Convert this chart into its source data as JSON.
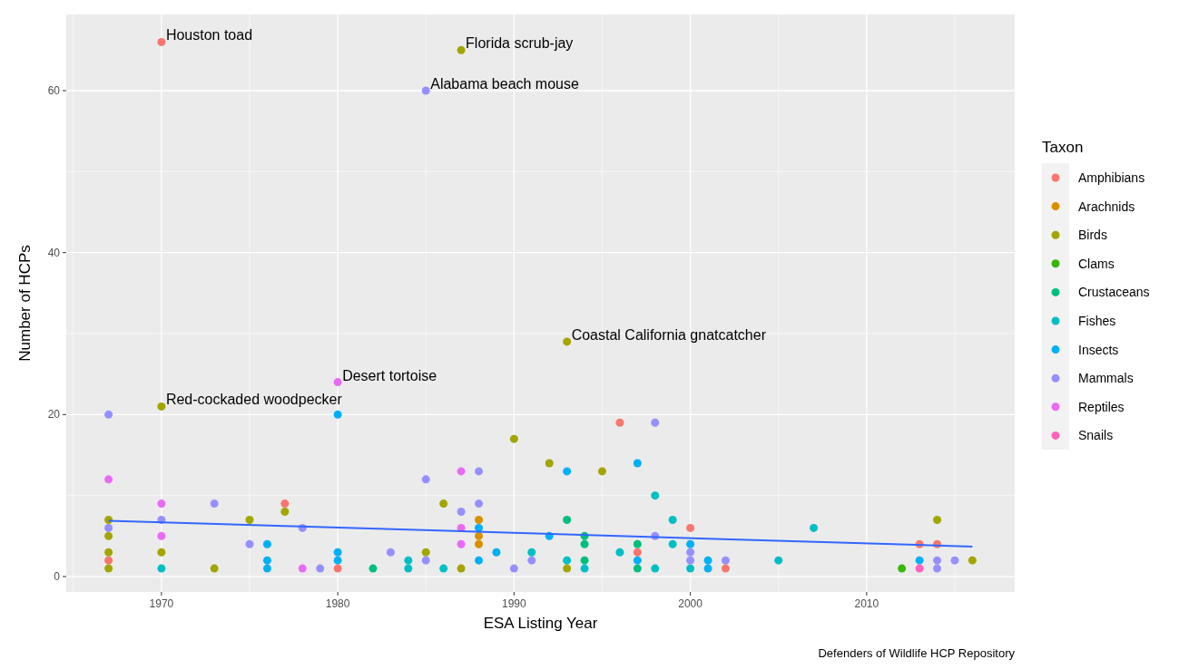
{
  "chart_data": {
    "type": "scatter",
    "xlabel": "ESA Listing Year",
    "ylabel": "Number of HCPs",
    "legend_title": "Taxon",
    "legend": "right",
    "grid": true,
    "marker": "circle",
    "xlim": [
      1964.6,
      2018.4
    ],
    "ylim": [
      -1.9,
      69.4
    ],
    "xticks": [
      1970,
      1980,
      1990,
      2000,
      2010
    ],
    "yticks": [
      0,
      20,
      40,
      60
    ],
    "series": [
      {
        "name": "Amphibians",
        "color": "#f8766d",
        "x": [
          1967,
          1970,
          1977,
          1980,
          1996,
          1997,
          2000,
          2002,
          2013,
          2014
        ],
        "values": [
          2,
          66,
          9,
          1,
          19,
          3,
          6,
          1,
          4,
          4
        ]
      },
      {
        "name": "Arachnids",
        "color": "#d89000",
        "x": [
          1988,
          1988,
          1988
        ],
        "values": [
          7,
          5,
          4
        ]
      },
      {
        "name": "Birds",
        "color": "#a3a500",
        "x": [
          1967,
          1967,
          1967,
          1967,
          1970,
          1970,
          1973,
          1975,
          1977,
          1985,
          1986,
          1987,
          1987,
          1990,
          1992,
          1993,
          1993,
          1995,
          2014,
          2016
        ],
        "values": [
          7,
          5,
          3,
          1,
          21,
          3,
          1,
          7,
          8,
          3,
          9,
          1,
          65,
          17,
          14,
          29,
          1,
          13,
          7,
          2
        ]
      },
      {
        "name": "Clams",
        "color": "#39b600",
        "x": [
          2012
        ],
        "values": [
          1
        ]
      },
      {
        "name": "Crustaceans",
        "color": "#00bf7d",
        "x": [
          1982,
          1993,
          1994,
          1994,
          1994,
          1997,
          1997
        ],
        "values": [
          1,
          7,
          5,
          4,
          2,
          4,
          1
        ]
      },
      {
        "name": "Fishes",
        "color": "#00bfc4",
        "x": [
          1970,
          1984,
          1984,
          1986,
          1991,
          1993,
          1994,
          1996,
          1998,
          1998,
          1999,
          1999,
          2000,
          2005,
          2007
        ],
        "values": [
          1,
          2,
          1,
          1,
          3,
          2,
          1,
          3,
          10,
          1,
          7,
          4,
          1,
          2,
          6
        ]
      },
      {
        "name": "Insects",
        "color": "#00b0f6",
        "x": [
          1976,
          1976,
          1976,
          1980,
          1980,
          1980,
          1988,
          1988,
          1989,
          1992,
          1993,
          1997,
          1997,
          2000,
          2001,
          2001,
          2013
        ],
        "values": [
          4,
          2,
          1,
          20,
          3,
          2,
          6,
          2,
          3,
          5,
          13,
          14,
          2,
          4,
          2,
          1,
          2
        ]
      },
      {
        "name": "Mammals",
        "color": "#9590ff",
        "x": [
          1967,
          1967,
          1970,
          1973,
          1975,
          1978,
          1979,
          1983,
          1985,
          1985,
          1985,
          1987,
          1988,
          1988,
          1990,
          1991,
          1998,
          1998,
          2000,
          2000,
          2002,
          2014,
          2014,
          2015
        ],
        "values": [
          20,
          6,
          7,
          9,
          4,
          6,
          1,
          3,
          60,
          12,
          2,
          8,
          13,
          9,
          1,
          2,
          19,
          5,
          3,
          2,
          2,
          2,
          1,
          2
        ]
      },
      {
        "name": "Reptiles",
        "color": "#e76bf3",
        "x": [
          1967,
          1970,
          1970,
          1978,
          1980,
          1987,
          1987,
          1987
        ],
        "values": [
          12,
          9,
          5,
          1,
          24,
          13,
          6,
          4
        ]
      },
      {
        "name": "Snails",
        "color": "#ff62bc",
        "x": [
          2013
        ],
        "values": [
          1
        ]
      },
      {
        "type": "line",
        "marker": "none",
        "color": "#3366ff",
        "x": [
          1967,
          2016
        ],
        "values": [
          6.9,
          3.7
        ]
      }
    ],
    "annotations": [
      {
        "text": "Houston toad",
        "x": 1970,
        "y": 66
      },
      {
        "text": "Florida scrub-jay",
        "x": 1987,
        "y": 65
      },
      {
        "text": "Alabama beach mouse",
        "x": 1985,
        "y": 60
      },
      {
        "text": "Coastal California gnatcatcher",
        "x": 1993,
        "y": 29
      },
      {
        "text": "Desert tortoise",
        "x": 1980,
        "y": 24
      },
      {
        "text": "Red-cockaded woodpecker",
        "x": 1970,
        "y": 21
      },
      "Defenders of Wildlife HCP Repository"
    ]
  }
}
